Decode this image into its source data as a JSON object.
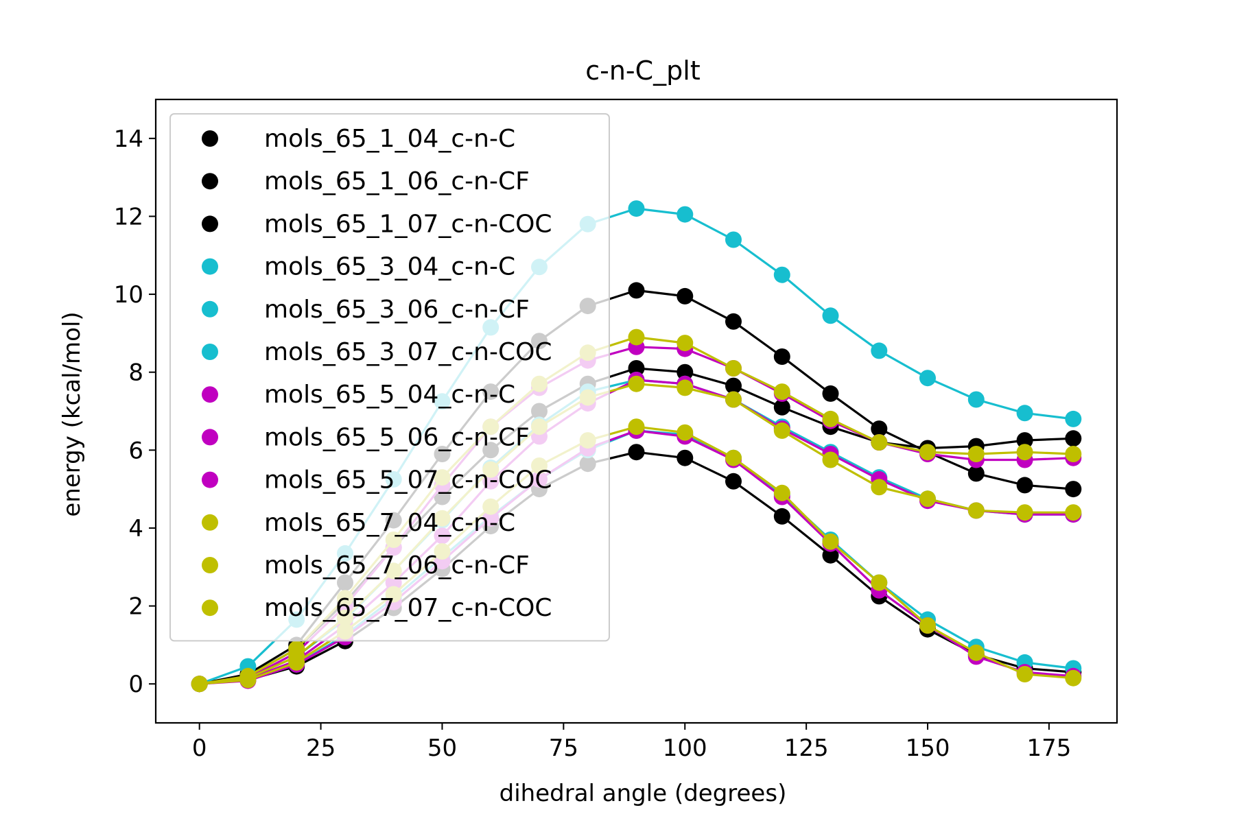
{
  "chart_data": {
    "type": "scatter",
    "title": "c-n-C_plt",
    "xlabel": "dihedral angle (degrees)",
    "ylabel": "energy (kcal/mol)",
    "xlim": [
      -9,
      189
    ],
    "ylim": [
      -1,
      15
    ],
    "xticks": [
      0,
      25,
      50,
      75,
      100,
      125,
      150,
      175
    ],
    "yticks": [
      0,
      2,
      4,
      6,
      8,
      10,
      12,
      14
    ],
    "grid": false,
    "legend_position": "upper-left",
    "x": [
      0,
      10,
      20,
      30,
      40,
      50,
      60,
      70,
      80,
      90,
      100,
      110,
      120,
      130,
      140,
      150,
      160,
      170,
      180
    ],
    "colors": {
      "mols_65_1": "#000000",
      "mols_65_3": "#17BECF",
      "mols_65_5": "#C000C0",
      "mols_65_7": "#BFBF00",
      "fade": "#C8C8C8"
    },
    "series": [
      {
        "name": "mols_65_1_04_c-n-C",
        "color": "#000000",
        "values": [
          0,
          0.25,
          1.0,
          2.6,
          4.2,
          5.9,
          7.5,
          8.8,
          9.7,
          10.1,
          9.95,
          9.3,
          8.4,
          7.45,
          6.55,
          5.95,
          5.4,
          5.1,
          5.0
        ]
      },
      {
        "name": "mols_65_1_06_c-n-CF",
        "color": "#000000",
        "values": [
          0,
          0.2,
          0.9,
          2.1,
          3.5,
          4.8,
          6.0,
          7.0,
          7.7,
          8.1,
          8.0,
          7.65,
          7.1,
          6.6,
          6.2,
          6.05,
          6.1,
          6.25,
          6.3
        ]
      },
      {
        "name": "mols_65_1_07_c-n-COC",
        "color": "#000000",
        "values": [
          0,
          0.1,
          0.45,
          1.1,
          1.95,
          2.95,
          4.05,
          5.0,
          5.65,
          5.95,
          5.8,
          5.2,
          4.3,
          3.3,
          2.25,
          1.4,
          0.75,
          0.4,
          0.3
        ]
      },
      {
        "name": "mols_65_3_04_c-n-C",
        "color": "#17BECF",
        "values": [
          0,
          0.45,
          1.65,
          3.35,
          5.25,
          7.25,
          9.15,
          10.7,
          11.8,
          12.2,
          12.05,
          11.4,
          10.5,
          9.45,
          8.55,
          7.85,
          7.3,
          6.95,
          6.8
        ]
      },
      {
        "name": "mols_65_3_06_c-n-CF",
        "color": "#17BECF",
        "values": [
          0,
          0.15,
          0.7,
          1.65,
          2.9,
          4.2,
          5.55,
          6.65,
          7.5,
          7.8,
          7.7,
          7.3,
          6.6,
          5.95,
          5.3,
          4.75,
          4.45,
          4.35,
          4.35
        ]
      },
      {
        "name": "mols_65_3_07_c-n-COC",
        "color": "#17BECF",
        "values": [
          0,
          0.1,
          0.5,
          1.25,
          2.2,
          3.25,
          4.3,
          5.25,
          6.0,
          6.5,
          6.4,
          5.8,
          4.85,
          3.7,
          2.6,
          1.65,
          0.95,
          0.55,
          0.4
        ]
      },
      {
        "name": "mols_65_5_04_c-n-C",
        "color": "#C000C0",
        "values": [
          0,
          0.15,
          0.8,
          2.0,
          3.5,
          5.1,
          6.6,
          7.6,
          8.3,
          8.65,
          8.6,
          8.1,
          7.45,
          6.75,
          6.2,
          5.9,
          5.75,
          5.75,
          5.8
        ]
      },
      {
        "name": "mols_65_5_06_c-n-CF",
        "color": "#C000C0",
        "values": [
          0,
          0.12,
          0.6,
          1.5,
          2.6,
          3.8,
          5.2,
          6.35,
          7.2,
          7.8,
          7.7,
          7.3,
          6.55,
          5.9,
          5.25,
          4.7,
          4.45,
          4.35,
          4.35
        ]
      },
      {
        "name": "mols_65_5_07_c-n-COC",
        "color": "#C000C0",
        "values": [
          0,
          0.08,
          0.5,
          1.2,
          2.1,
          3.15,
          4.25,
          5.25,
          6.05,
          6.5,
          6.35,
          5.75,
          4.8,
          3.6,
          2.4,
          1.5,
          0.7,
          0.3,
          0.2
        ]
      },
      {
        "name": "mols_65_7_04_c-n-C",
        "color": "#BFBF00",
        "values": [
          0,
          0.2,
          0.9,
          2.2,
          3.7,
          5.3,
          6.6,
          7.7,
          8.5,
          8.9,
          8.75,
          8.1,
          7.5,
          6.8,
          6.2,
          5.95,
          5.9,
          5.95,
          5.9
        ]
      },
      {
        "name": "mols_65_7_06_c-n-CF",
        "color": "#BFBF00",
        "values": [
          0,
          0.15,
          0.7,
          1.7,
          2.9,
          4.25,
          5.5,
          6.6,
          7.35,
          7.7,
          7.6,
          7.3,
          6.5,
          5.75,
          5.05,
          4.75,
          4.45,
          4.4,
          4.4
        ]
      },
      {
        "name": "mols_65_7_07_c-n-COC",
        "color": "#BFBF00",
        "values": [
          0,
          0.1,
          0.55,
          1.35,
          2.3,
          3.4,
          4.55,
          5.6,
          6.25,
          6.6,
          6.45,
          5.8,
          4.9,
          3.65,
          2.6,
          1.5,
          0.8,
          0.25,
          0.15
        ]
      }
    ]
  }
}
